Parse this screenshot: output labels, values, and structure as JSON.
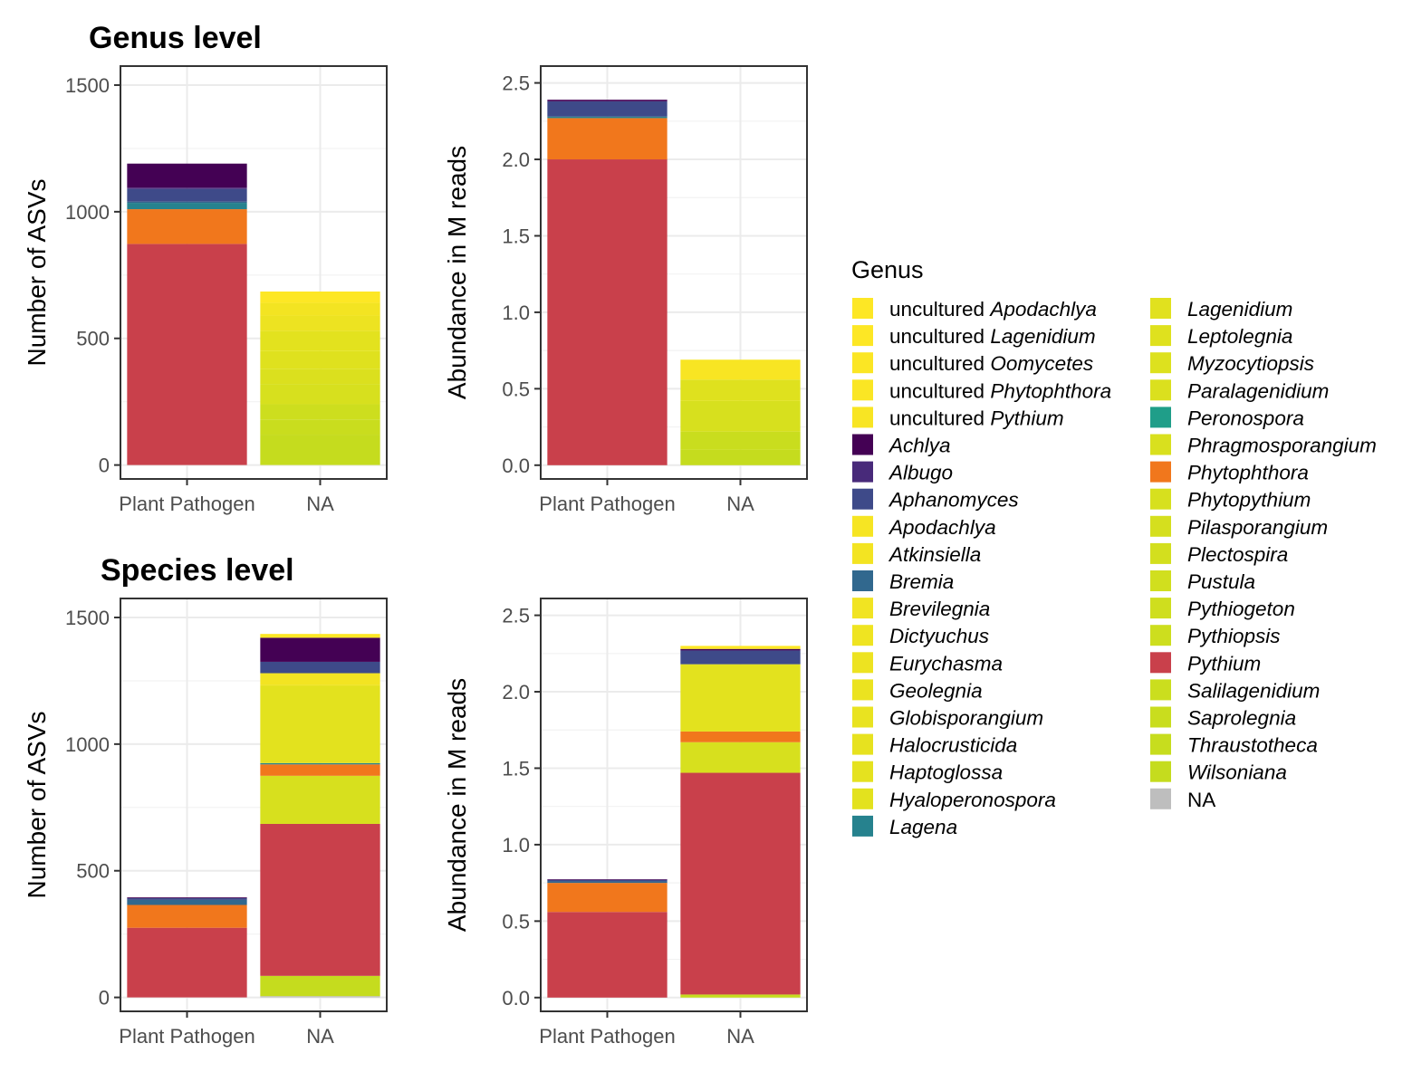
{
  "panel_titles": [
    "Genus level",
    "Species level"
  ],
  "chart_data": [
    {
      "type": "bar",
      "stacked": true,
      "panel": "genus-asvs",
      "title": "Genus level",
      "xlabel": "",
      "ylabel": "Number of ASVs",
      "categories": [
        "Plant Pathogen",
        "NA"
      ],
      "ylim": [
        -55,
        1575
      ],
      "yticks": [
        0,
        500,
        1000,
        1500
      ],
      "series": [
        {
          "name": "Wilsoniana",
          "values": [
            0,
            120
          ]
        },
        {
          "name": "Saprolegnia",
          "values": [
            0,
            60
          ]
        },
        {
          "name": "Pythiopsis",
          "values": [
            0,
            60
          ]
        },
        {
          "name": "Phytopythium",
          "values": [
            0,
            80
          ]
        },
        {
          "name": "Paralagenidium",
          "values": [
            0,
            60
          ]
        },
        {
          "name": "Leptolegnia",
          "values": [
            0,
            70
          ]
        },
        {
          "name": "Hyaloperonospora",
          "values": [
            0,
            80
          ]
        },
        {
          "name": "Eurychasma",
          "values": [
            0,
            60
          ]
        },
        {
          "name": "Atkinsiella",
          "values": [
            0,
            50
          ]
        },
        {
          "name": "uncultured Apodachlya",
          "values": [
            0,
            45
          ]
        },
        {
          "name": "Pythium",
          "values": [
            873,
            0
          ]
        },
        {
          "name": "Phytophthora",
          "values": [
            137,
            0
          ]
        },
        {
          "name": "Lagena",
          "values": [
            25,
            0
          ]
        },
        {
          "name": "Bremia",
          "values": [
            5,
            0
          ]
        },
        {
          "name": "Aphanomyces",
          "values": [
            50,
            0
          ]
        },
        {
          "name": "Albugo",
          "values": [
            5,
            0
          ]
        },
        {
          "name": "Achlya",
          "values": [
            95,
            0
          ]
        }
      ]
    },
    {
      "type": "bar",
      "stacked": true,
      "panel": "genus-abundance",
      "title": "",
      "xlabel": "",
      "ylabel": "Abundance in M reads",
      "categories": [
        "Plant Pathogen",
        "NA"
      ],
      "ylim": [
        -0.09,
        2.61
      ],
      "yticks": [
        "0.0",
        "0.5",
        "1.0",
        "1.5",
        "2.0",
        "2.5"
      ],
      "series": [
        {
          "name": "Wilsoniana",
          "values": [
            0,
            0.1
          ]
        },
        {
          "name": "Saprolegnia",
          "values": [
            0,
            0.12
          ]
        },
        {
          "name": "Phytopythium",
          "values": [
            0,
            0.2
          ]
        },
        {
          "name": "Leptolegnia",
          "values": [
            0,
            0.14
          ]
        },
        {
          "name": "uncultured Pythium",
          "values": [
            0,
            0.13
          ]
        },
        {
          "name": "Pythium",
          "values": [
            2.0,
            0
          ]
        },
        {
          "name": "Phytophthora",
          "values": [
            0.27,
            0
          ]
        },
        {
          "name": "Lagena",
          "values": [
            0.01,
            0
          ]
        },
        {
          "name": "Aphanomyces",
          "values": [
            0.1,
            0
          ]
        },
        {
          "name": "Achlya",
          "values": [
            0.01,
            0
          ]
        }
      ]
    },
    {
      "type": "bar",
      "stacked": true,
      "panel": "species-asvs",
      "title": "Species level",
      "xlabel": "",
      "ylabel": "Number of ASVs",
      "categories": [
        "Plant Pathogen",
        "NA"
      ],
      "ylim": [
        -55,
        1575
      ],
      "yticks": [
        0,
        500,
        1000,
        1500
      ],
      "series": [
        {
          "name": "NA",
          "values": [
            0,
            5
          ]
        },
        {
          "name": "Wilsoniana",
          "values": [
            0,
            80
          ]
        },
        {
          "name": "Pythium",
          "values": [
            275,
            600
          ]
        },
        {
          "name": "Phytopythium",
          "values": [
            0,
            190
          ]
        },
        {
          "name": "Phytophthora",
          "values": [
            90,
            45
          ]
        },
        {
          "name": "Lagena",
          "values": [
            0,
            5
          ]
        },
        {
          "name": "Hyaloperonospora",
          "values": [
            0,
            305
          ]
        },
        {
          "name": "Eurychasma",
          "values": [
            0,
            5
          ]
        },
        {
          "name": "Bremia",
          "values": [
            20,
            0
          ]
        },
        {
          "name": "Atkinsiella",
          "values": [
            0,
            45
          ]
        },
        {
          "name": "Aphanomyces",
          "values": [
            7,
            45
          ]
        },
        {
          "name": "Achlya",
          "values": [
            3,
            95
          ]
        },
        {
          "name": "uncultured Apodachlya",
          "values": [
            0,
            15
          ]
        }
      ]
    },
    {
      "type": "bar",
      "stacked": true,
      "panel": "species-abundance",
      "title": "",
      "xlabel": "",
      "ylabel": "Abundance in M reads",
      "categories": [
        "Plant Pathogen",
        "NA"
      ],
      "ylim": [
        -0.09,
        2.61
      ],
      "yticks": [
        "0.0",
        "0.5",
        "1.0",
        "1.5",
        "2.0",
        "2.5"
      ],
      "series": [
        {
          "name": "Wilsoniana",
          "values": [
            0,
            0.02
          ]
        },
        {
          "name": "Pythium",
          "values": [
            0.56,
            1.45
          ]
        },
        {
          "name": "Phytopythium",
          "values": [
            0,
            0.2
          ]
        },
        {
          "name": "Phytophthora",
          "values": [
            0.19,
            0.07
          ]
        },
        {
          "name": "Hyaloperonospora",
          "values": [
            0,
            0.44
          ]
        },
        {
          "name": "Bremia",
          "values": [
            0.01,
            0
          ]
        },
        {
          "name": "Aphanomyces",
          "values": [
            0.01,
            0.09
          ]
        },
        {
          "name": "Achlya",
          "values": [
            0.004,
            0.01
          ]
        },
        {
          "name": "uncultured Apodachlya",
          "values": [
            0,
            0.02
          ]
        }
      ]
    }
  ],
  "legend": {
    "title": "Genus",
    "columns": [
      [
        {
          "prefix": "uncultured ",
          "name": "Apodachlya",
          "color": "#fde725"
        },
        {
          "prefix": "uncultured ",
          "name": "Lagenidium",
          "color": "#fde725"
        },
        {
          "prefix": "uncultured ",
          "name": "Oomycetes",
          "color": "#fbe624"
        },
        {
          "prefix": "uncultured ",
          "name": "Phytophthora",
          "color": "#fae624"
        },
        {
          "prefix": "uncultured ",
          "name": "Pythium",
          "color": "#f8e523"
        },
        {
          "prefix": "",
          "name": "Achlya",
          "color": "#440154"
        },
        {
          "prefix": "",
          "name": "Albugo",
          "color": "#482a7a"
        },
        {
          "prefix": "",
          "name": "Aphanomyces",
          "color": "#3e4a89"
        },
        {
          "prefix": "",
          "name": "Apodachlya",
          "color": "#f6e523"
        },
        {
          "prefix": "",
          "name": "Atkinsiella",
          "color": "#f3e422"
        },
        {
          "prefix": "",
          "name": "Bremia",
          "color": "#31688e"
        },
        {
          "prefix": "",
          "name": "Brevilegnia",
          "color": "#f1e422"
        },
        {
          "prefix": "",
          "name": "Dictyuchus",
          "color": "#efe421"
        },
        {
          "prefix": "",
          "name": "Eurychasma",
          "color": "#ede321"
        },
        {
          "prefix": "",
          "name": "Geolegnia",
          "color": "#ebe320"
        },
        {
          "prefix": "",
          "name": "Globisporangium",
          "color": "#e9e320"
        },
        {
          "prefix": "",
          "name": "Halocrusticida",
          "color": "#e7e21f"
        },
        {
          "prefix": "",
          "name": "Haptoglossa",
          "color": "#e5e21f"
        },
        {
          "prefix": "",
          "name": "Hyaloperonospora",
          "color": "#e3e21e"
        },
        {
          "prefix": "",
          "name": "Lagena",
          "color": "#26828e"
        }
      ],
      [
        {
          "prefix": "",
          "name": "Lagenidium",
          "color": "#e1e11e"
        },
        {
          "prefix": "",
          "name": "Leptolegnia",
          "color": "#dfe11e"
        },
        {
          "prefix": "",
          "name": "Myzocytiopsis",
          "color": "#dde11e"
        },
        {
          "prefix": "",
          "name": "Paralagenidium",
          "color": "#dbe01e"
        },
        {
          "prefix": "",
          "name": "Peronospora",
          "color": "#1f9e89"
        },
        {
          "prefix": "",
          "name": "Phragmosporangium",
          "color": "#d9e01e"
        },
        {
          "prefix": "",
          "name": "Phytophthora",
          "color": "#f1771c"
        },
        {
          "prefix": "",
          "name": "Phytopythium",
          "color": "#d7e01e"
        },
        {
          "prefix": "",
          "name": "Pilasporangium",
          "color": "#d5df1e"
        },
        {
          "prefix": "",
          "name": "Plectospira",
          "color": "#d3df1e"
        },
        {
          "prefix": "",
          "name": "Pustula",
          "color": "#d1df1e"
        },
        {
          "prefix": "",
          "name": "Pythiogeton",
          "color": "#cfde1e"
        },
        {
          "prefix": "",
          "name": "Pythiopsis",
          "color": "#cdde1e"
        },
        {
          "prefix": "",
          "name": "Pythium",
          "color": "#c9404b"
        },
        {
          "prefix": "",
          "name": "Salilagenidium",
          "color": "#cbde1e"
        },
        {
          "prefix": "",
          "name": "Saprolegnia",
          "color": "#c9dd1e"
        },
        {
          "prefix": "",
          "name": "Thraustotheca",
          "color": "#c7dd1e"
        },
        {
          "prefix": "",
          "name": "Wilsoniana",
          "color": "#c5dc1e"
        },
        {
          "prefix": "",
          "name": "NA",
          "color": "#bebebe"
        }
      ]
    ]
  }
}
